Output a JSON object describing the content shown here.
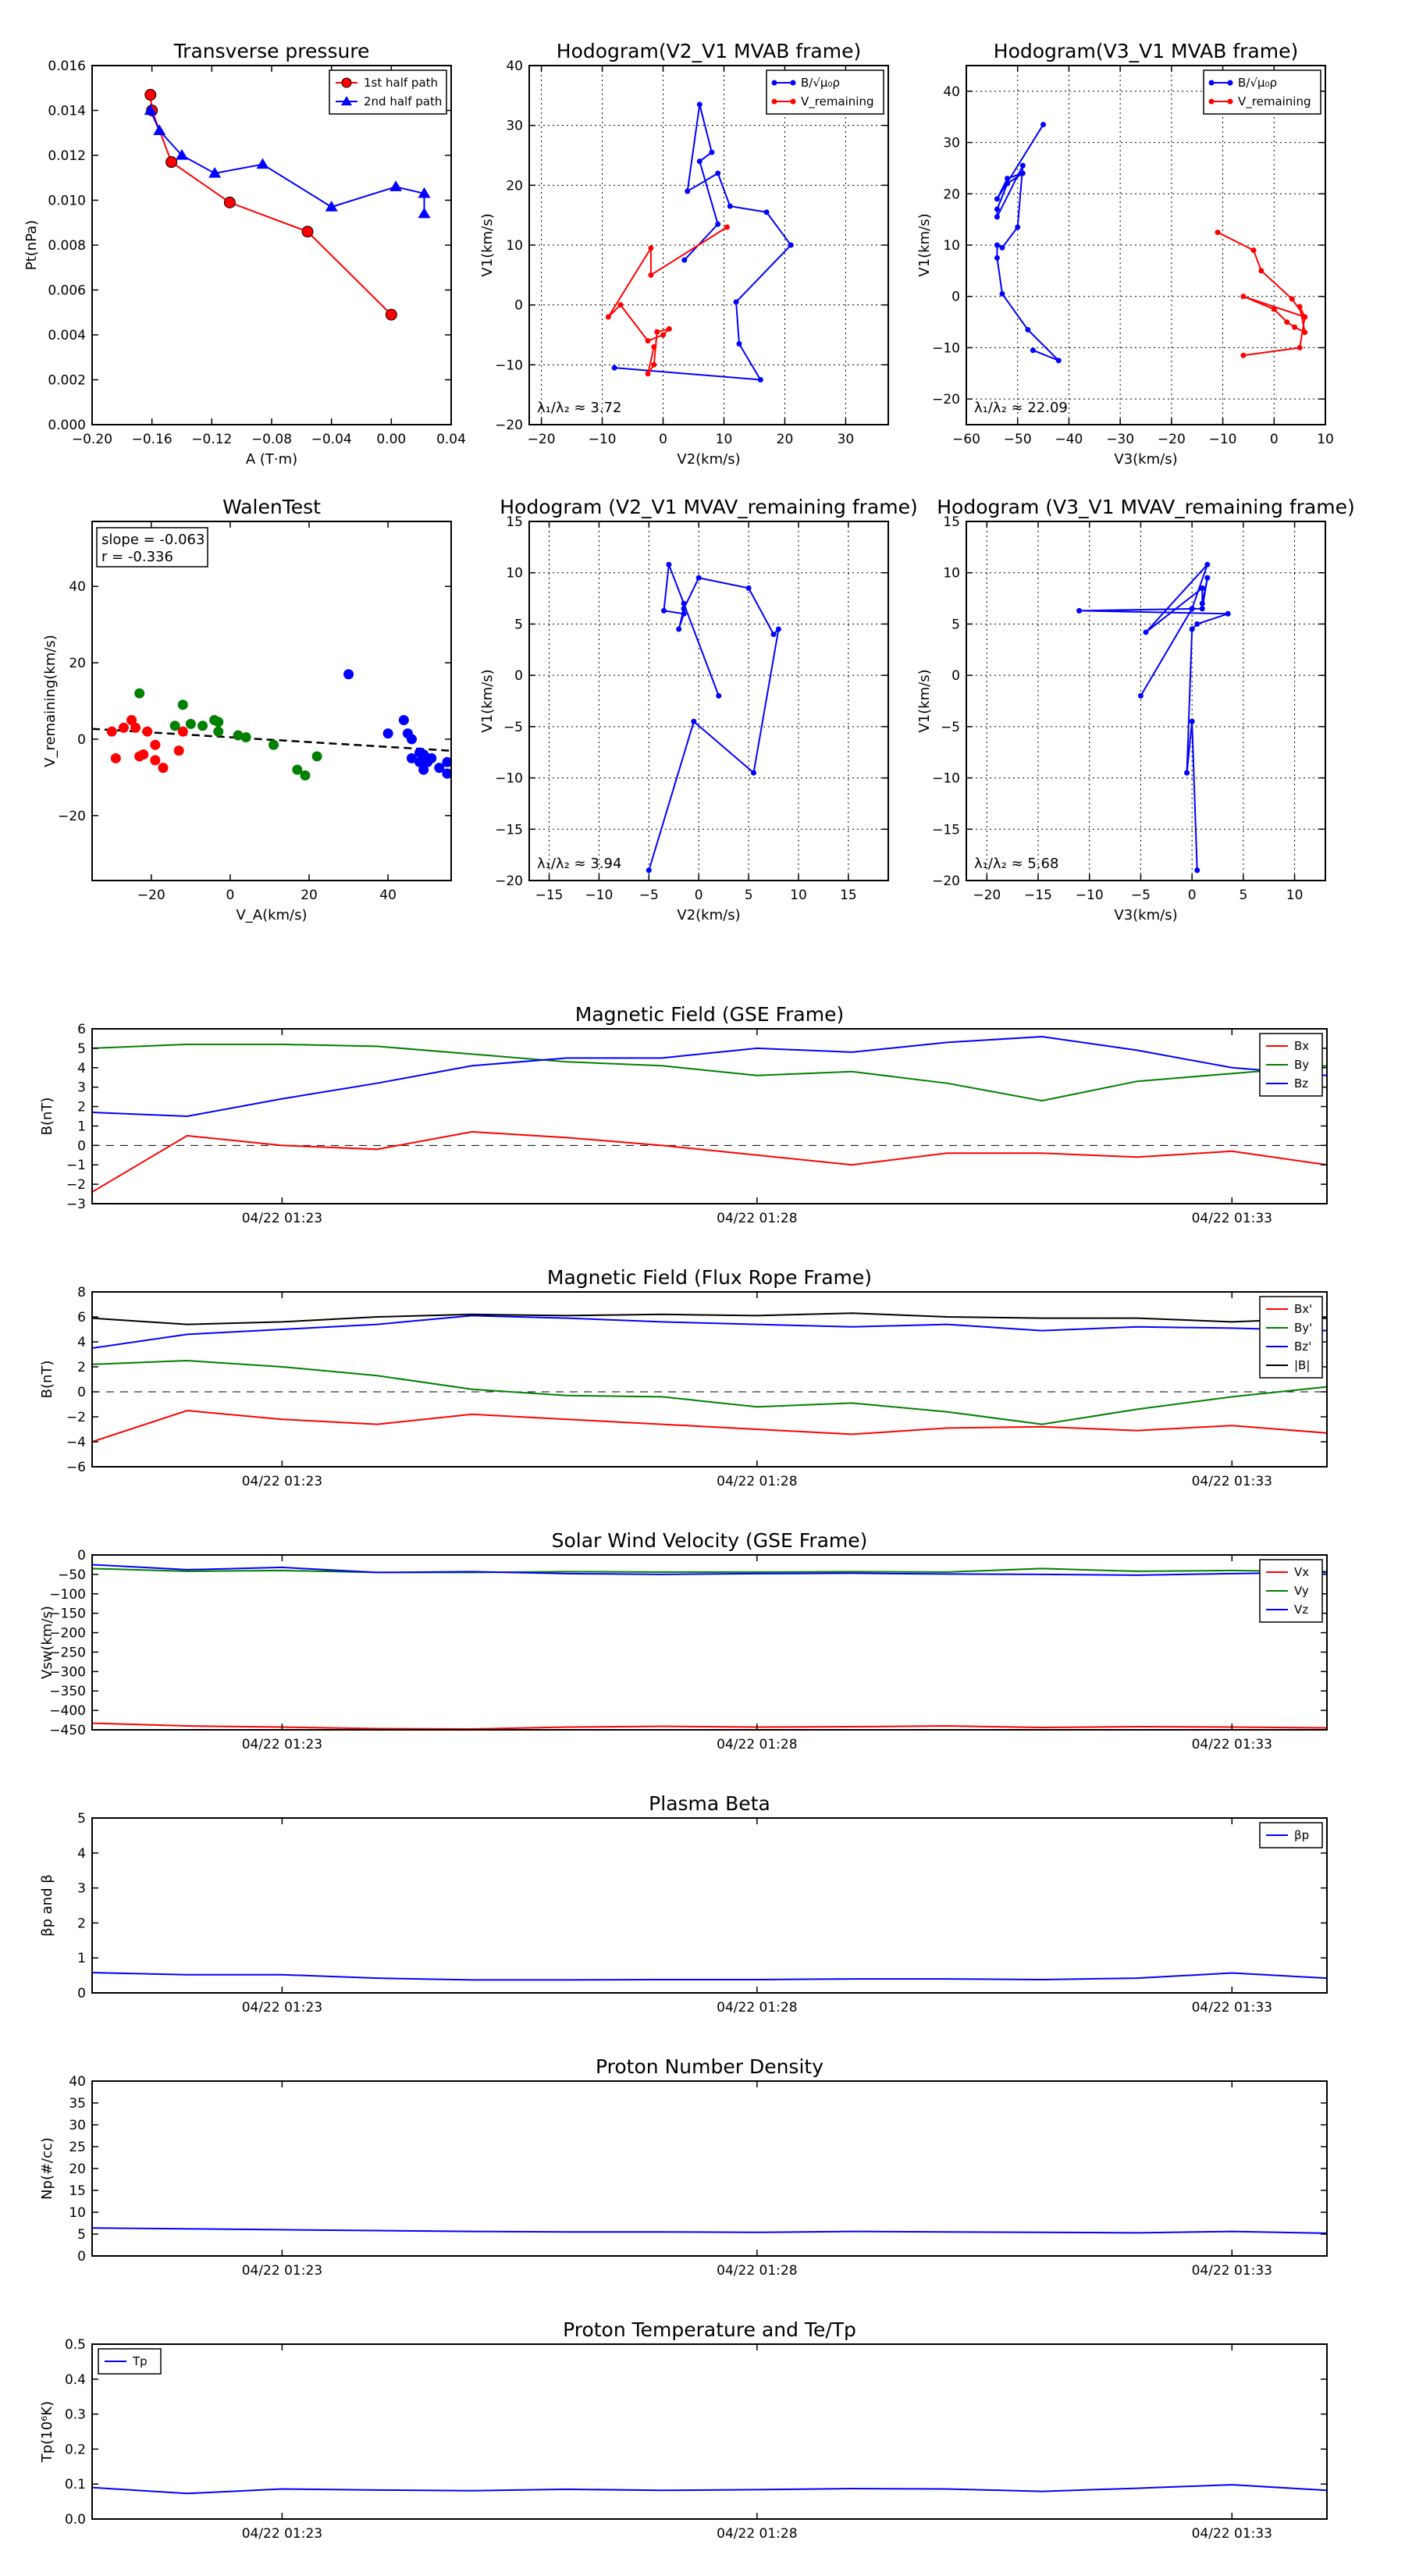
{
  "colors": {
    "red": "#ff0000",
    "green": "#008000",
    "blue": "#0000ff",
    "black": "#000000"
  },
  "chart_data": [
    {
      "id": "tp",
      "type": "line",
      "title": "Transverse pressure",
      "xlabel": "A (T·m)",
      "ylabel": "Pt(nPa)",
      "xlim": [
        -0.2,
        0.04
      ],
      "ylim": [
        0,
        0.016
      ],
      "xticks": [
        "−0.20",
        "−0.16",
        "−0.12",
        "−0.08",
        "−0.04",
        "0.00",
        "0.04"
      ],
      "yticks": [
        "0.000",
        "0.002",
        "0.004",
        "0.006",
        "0.008",
        "0.010",
        "0.012",
        "0.014",
        "0.016"
      ],
      "grid": false,
      "legend": "top-right",
      "series": [
        {
          "name": "1st half path",
          "color": "#ff0000",
          "marker": "circle",
          "x": [
            -0.161,
            -0.16,
            -0.147,
            -0.108,
            -0.056,
            0.0
          ],
          "y": [
            0.0147,
            0.014,
            0.0117,
            0.0099,
            0.0086,
            0.0049
          ]
        },
        {
          "name": "2nd half path",
          "color": "#0000ff",
          "marker": "triangle",
          "x": [
            -0.161,
            -0.155,
            -0.14,
            -0.118,
            -0.086,
            -0.04,
            0.003,
            0.022,
            0.022
          ],
          "y": [
            0.014,
            0.0131,
            0.012,
            0.0112,
            0.0116,
            0.0097,
            0.0106,
            0.0103,
            0.0094
          ]
        }
      ]
    },
    {
      "id": "h1",
      "type": "line",
      "title": "Hodogram(V2_V1 MVAB frame)",
      "xlabel": "V2(km/s)",
      "ylabel": "V1(km/s)",
      "xlim": [
        -22,
        37
      ],
      "ylim": [
        -20,
        40
      ],
      "xticks": [
        "−20",
        "−10",
        "0",
        "10",
        "20",
        "30"
      ],
      "yticks": [
        "−20",
        "−10",
        "0",
        "10",
        "20",
        "30",
        "40"
      ],
      "grid": true,
      "legend": "top-right",
      "annotation": "λ₁/λ₂ ≈ 3.72",
      "series": [
        {
          "name": "B/√μ₀ρ",
          "color": "#0000ff",
          "marker": "dot",
          "x": [
            -8,
            16,
            12.5,
            12,
            21,
            17,
            11,
            9,
            4,
            6,
            8,
            6,
            9,
            3.5
          ],
          "y": [
            -10.5,
            -12.5,
            -6.5,
            0.5,
            10,
            15.5,
            16.5,
            22,
            19,
            33.5,
            25.5,
            24,
            13.5,
            7.5
          ]
        },
        {
          "name": "V_remaining",
          "color": "#ff0000",
          "marker": "dot",
          "x": [
            10.5,
            -2,
            -2,
            -9,
            -7,
            -2.5,
            0,
            1,
            -1,
            -1.5,
            -2.5,
            -1.5
          ],
          "y": [
            13,
            5,
            9.5,
            -2,
            0,
            -6,
            -5,
            -4,
            -4.5,
            -10,
            -11.5,
            -7
          ]
        }
      ]
    },
    {
      "id": "h2",
      "type": "line",
      "title": "Hodogram(V3_V1 MVAB frame)",
      "xlabel": "V3(km/s)",
      "ylabel": "V1(km/s)",
      "xlim": [
        -60,
        10
      ],
      "ylim": [
        -25,
        45
      ],
      "xticks": [
        "−60",
        "−50",
        "−40",
        "−30",
        "−20",
        "−10",
        "0",
        "10"
      ],
      "yticks": [
        "−20",
        "−10",
        "0",
        "10",
        "20",
        "30",
        "40"
      ],
      "grid": true,
      "legend": "top-right",
      "annotation": "λ₁/λ₂ ≈ 22.09",
      "series": [
        {
          "name": "B/√μ₀ρ",
          "color": "#0000ff",
          "marker": "dot",
          "x": [
            -47,
            -42,
            -48,
            -53,
            -54,
            -54,
            -53,
            -50,
            -49,
            -54,
            -54,
            -52,
            -49,
            -52,
            -54,
            -45
          ],
          "y": [
            -10.5,
            -12.5,
            -6.5,
            0.5,
            7.5,
            10,
            9.5,
            13.5,
            25.5,
            15.5,
            17,
            22,
            24,
            23,
            19,
            33.5
          ]
        },
        {
          "name": "V_remaining",
          "color": "#ff0000",
          "marker": "dot",
          "x": [
            -11,
            -4,
            -2.5,
            3.5,
            6,
            5,
            6,
            4,
            2.5,
            0,
            -6,
            6,
            5,
            -6
          ],
          "y": [
            12.5,
            9,
            5,
            -0.5,
            -4,
            -2,
            -7,
            -6,
            -5,
            -2.5,
            0,
            -4,
            -10,
            -11.5
          ]
        }
      ]
    },
    {
      "id": "walen",
      "type": "scatter",
      "title": "WalenTest",
      "xlabel": "V_A(km/s)",
      "ylabel": "V_remaining(km/s)",
      "xlim": [
        -35,
        56
      ],
      "ylim": [
        -37,
        57
      ],
      "xticks": [
        "−20",
        "0",
        "20",
        "40"
      ],
      "yticks": [
        "−20",
        "0",
        "20",
        "40"
      ],
      "grid": false,
      "annotation": [
        "slope = -0.063",
        "r = -0.336"
      ],
      "fit": {
        "slope": -0.063,
        "intercept": 0.5
      },
      "series": [
        {
          "color": "#ff0000",
          "x": [
            -30,
            -29,
            -27,
            -25,
            -24,
            -23,
            -22,
            -21,
            -19,
            -19,
            -17,
            -13,
            -12
          ],
          "y": [
            2,
            -5,
            3,
            5,
            3,
            -4.5,
            -4,
            2,
            -1.5,
            -5.5,
            -7.5,
            -3,
            2
          ]
        },
        {
          "color": "#008000",
          "x": [
            -23,
            -14,
            -12,
            -10,
            -7,
            -4,
            -3,
            -3,
            2,
            4,
            11,
            17,
            19,
            22
          ],
          "y": [
            12,
            3.5,
            9,
            4,
            3.5,
            5,
            2,
            4.5,
            1,
            0.5,
            -1.5,
            -8,
            -9.5,
            -4.5
          ]
        },
        {
          "color": "#0000ff",
          "x": [
            30,
            40,
            44,
            45,
            46,
            46,
            48,
            48,
            49,
            49,
            50,
            50,
            51,
            53,
            55,
            55
          ],
          "y": [
            17,
            1.5,
            5,
            1.5,
            -5,
            0,
            -3.5,
            -6,
            -8,
            -4,
            -5,
            -6,
            -5,
            -7.5,
            -9,
            -6
          ]
        }
      ]
    },
    {
      "id": "h3",
      "type": "line",
      "title": "Hodogram (V2_V1 MVAV_remaining frame)",
      "xlabel": "V2(km/s)",
      "ylabel": "V1(km/s)",
      "xlim": [
        -17,
        19
      ],
      "ylim": [
        -20,
        15
      ],
      "xticks": [
        "−15",
        "−10",
        "−5",
        "0",
        "5",
        "10",
        "15"
      ],
      "yticks": [
        "−20",
        "−15",
        "−10",
        "−5",
        "0",
        "5",
        "10",
        "15"
      ],
      "grid": true,
      "annotation": "λ₁/λ₂ ≈ 3.94",
      "series": [
        {
          "color": "#0000ff",
          "marker": "dot",
          "x": [
            -5,
            -0.5,
            5.5,
            8,
            7.5,
            5,
            0,
            -1.5,
            -2,
            -1.5,
            -3.5,
            -3,
            -1.5,
            2
          ],
          "y": [
            -19,
            -4.5,
            -9.5,
            4.5,
            4,
            8.5,
            9.5,
            6.5,
            4.5,
            6,
            6.3,
            10.8,
            7,
            -2
          ]
        }
      ]
    },
    {
      "id": "h4",
      "type": "line",
      "title": "Hodogram (V3_V1 MVAV_remaining frame)",
      "xlabel": "V3(km/s)",
      "ylabel": "V1(km/s)",
      "xlim": [
        -22,
        13
      ],
      "ylim": [
        -20,
        15
      ],
      "xticks": [
        "−20",
        "−15",
        "−10",
        "−5",
        "0",
        "5",
        "10"
      ],
      "yticks": [
        "−20",
        "−15",
        "−10",
        "−5",
        "0",
        "5",
        "10",
        "15"
      ],
      "grid": true,
      "annotation": "λ₁/λ₂ ≈ 5.68",
      "series": [
        {
          "color": "#0000ff",
          "marker": "dot",
          "x": [
            0.5,
            0,
            -0.5,
            0,
            0.5,
            3.5,
            -11,
            1,
            1.5,
            1,
            1,
            -4.5,
            1.5,
            0,
            -5
          ],
          "y": [
            -19,
            -4.5,
            -9.5,
            4.5,
            5,
            6,
            6.3,
            6.5,
            9.5,
            7,
            8.5,
            4.2,
            10.8,
            6.5,
            -2
          ]
        }
      ]
    },
    {
      "id": "mfgse",
      "type": "line",
      "title": "Magnetic Field (GSE Frame)",
      "xlabel": "",
      "ylabel": "B(nT)",
      "xlim": [
        0,
        13
      ],
      "ylim": [
        -3,
        6
      ],
      "xticks": [
        "04/22 01:23",
        "04/22 01:28",
        "04/22 01:33"
      ],
      "xtick_pos": [
        2,
        7,
        12
      ],
      "yticks": [
        "−3",
        "−2",
        "−1",
        "0",
        "1",
        "2",
        "3",
        "4",
        "5",
        "6"
      ],
      "grid": false,
      "zero_line": true,
      "legend": "top-right",
      "series": [
        {
          "name": "Bx",
          "color": "#ff0000",
          "y": [
            -2.4,
            0.5,
            0.0,
            -0.2,
            0.7,
            0.4,
            0.0,
            -0.5,
            -1.0,
            -0.4,
            -0.4,
            -0.6,
            -0.3,
            -1.0
          ]
        },
        {
          "name": "By",
          "color": "#008000",
          "y": [
            5.0,
            5.2,
            5.2,
            5.1,
            4.7,
            4.3,
            4.1,
            3.6,
            3.8,
            3.2,
            2.3,
            3.3,
            3.7,
            4.1
          ]
        },
        {
          "name": "Bz",
          "color": "#0000ff",
          "y": [
            1.7,
            1.5,
            2.4,
            3.2,
            4.1,
            4.5,
            4.5,
            5.0,
            4.8,
            5.3,
            5.6,
            4.9,
            4.0,
            3.6
          ]
        }
      ]
    },
    {
      "id": "mffr",
      "type": "line",
      "title": "Magnetic Field (Flux Rope Frame)",
      "xlabel": "",
      "ylabel": "B(nT)",
      "xlim": [
        0,
        13
      ],
      "ylim": [
        -6,
        8
      ],
      "xticks": [
        "04/22 01:23",
        "04/22 01:28",
        "04/22 01:33"
      ],
      "xtick_pos": [
        2,
        7,
        12
      ],
      "yticks": [
        "−6",
        "−4",
        "−2",
        "0",
        "2",
        "4",
        "6",
        "8"
      ],
      "grid": false,
      "zero_line": true,
      "legend": "top-right",
      "series": [
        {
          "name": "Bx'",
          "color": "#ff0000",
          "y": [
            -4.0,
            -1.5,
            -2.2,
            -2.6,
            -1.8,
            -2.2,
            -2.6,
            -3.0,
            -3.4,
            -2.9,
            -2.8,
            -3.1,
            -2.7,
            -3.3
          ]
        },
        {
          "name": "By'",
          "color": "#008000",
          "y": [
            2.2,
            2.5,
            2.0,
            1.3,
            0.2,
            -0.3,
            -0.4,
            -1.2,
            -0.9,
            -1.6,
            -2.6,
            -1.4,
            -0.4,
            0.4
          ]
        },
        {
          "name": "Bz'",
          "color": "#0000ff",
          "y": [
            3.5,
            4.6,
            5.0,
            5.4,
            6.1,
            5.9,
            5.6,
            5.4,
            5.2,
            5.4,
            4.9,
            5.2,
            5.1,
            4.9
          ]
        },
        {
          "name": "|B|",
          "color": "#000000",
          "y": [
            5.9,
            5.4,
            5.6,
            6.0,
            6.2,
            6.1,
            6.2,
            6.1,
            6.3,
            6.0,
            5.9,
            5.9,
            5.6,
            5.9
          ]
        }
      ]
    },
    {
      "id": "vsw",
      "type": "line",
      "title": "Solar Wind Velocity (GSE Frame)",
      "xlabel": "",
      "ylabel": "Vsw(km/s)",
      "xlim": [
        0,
        13
      ],
      "ylim": [
        -450,
        0
      ],
      "xticks": [
        "04/22 01:23",
        "04/22 01:28",
        "04/22 01:33"
      ],
      "xtick_pos": [
        2,
        7,
        12
      ],
      "yticks": [
        "−450",
        "−400",
        "−350",
        "−300",
        "−250",
        "−200",
        "−150",
        "−100",
        "−50",
        "0"
      ],
      "grid": false,
      "legend": "top-right",
      "series": [
        {
          "name": "Vx",
          "color": "#ff0000",
          "y": [
            -433,
            -440,
            -443,
            -447,
            -448,
            -443,
            -441,
            -443,
            -442,
            -440,
            -444,
            -442,
            -443,
            -445
          ]
        },
        {
          "name": "Vy",
          "color": "#008000",
          "y": [
            -35,
            -42,
            -40,
            -45,
            -45,
            -43,
            -44,
            -44,
            -43,
            -44,
            -35,
            -42,
            -40,
            -43
          ]
        },
        {
          "name": "Vz",
          "color": "#0000ff",
          "y": [
            -25,
            -38,
            -32,
            -45,
            -43,
            -48,
            -50,
            -48,
            -47,
            -49,
            -50,
            -52,
            -48,
            -45
          ]
        }
      ]
    },
    {
      "id": "beta",
      "type": "line",
      "title": "Plasma Beta",
      "xlabel": "",
      "ylabel": "βp and β",
      "xlim": [
        0,
        13
      ],
      "ylim": [
        0,
        5
      ],
      "xticks": [
        "04/22 01:23",
        "04/22 01:28",
        "04/22 01:33"
      ],
      "xtick_pos": [
        2,
        7,
        12
      ],
      "yticks": [
        "0",
        "1",
        "2",
        "3",
        "4",
        "5"
      ],
      "grid": false,
      "legend": "top-right",
      "series": [
        {
          "name": "βp",
          "color": "#0000ff",
          "y": [
            0.58,
            0.52,
            0.52,
            0.42,
            0.37,
            0.37,
            0.38,
            0.38,
            0.4,
            0.4,
            0.38,
            0.42,
            0.57,
            0.42
          ]
        }
      ]
    },
    {
      "id": "np",
      "type": "line",
      "title": "Proton Number Density",
      "xlabel": "",
      "ylabel": "Np(#/cc)",
      "xlim": [
        0,
        13
      ],
      "ylim": [
        0,
        40
      ],
      "xticks": [
        "04/22 01:23",
        "04/22 01:28",
        "04/22 01:33"
      ],
      "xtick_pos": [
        2,
        7,
        12
      ],
      "yticks": [
        "0",
        "5",
        "10",
        "15",
        "20",
        "25",
        "30",
        "35",
        "40"
      ],
      "grid": false,
      "series": [
        {
          "name": "",
          "color": "#0000ff",
          "y": [
            6.4,
            6.2,
            6.0,
            5.8,
            5.6,
            5.5,
            5.5,
            5.4,
            5.6,
            5.5,
            5.4,
            5.3,
            5.6,
            5.2
          ]
        }
      ]
    },
    {
      "id": "tp2",
      "type": "line",
      "title": "Proton Temperature and Te/Tp",
      "xlabel": "",
      "ylabel": "Tp(10⁶K)",
      "xlim": [
        0,
        13
      ],
      "ylim": [
        0,
        0.5
      ],
      "xticks": [
        "04/22 01:23",
        "04/22 01:28",
        "04/22 01:33"
      ],
      "xtick_pos": [
        2,
        7,
        12
      ],
      "yticks": [
        "0.0",
        "0.1",
        "0.2",
        "0.3",
        "0.4",
        "0.5"
      ],
      "grid": false,
      "legend": "top-left",
      "series": [
        {
          "name": "Tp",
          "color": "#0000ff",
          "y": [
            0.09,
            0.073,
            0.086,
            0.083,
            0.081,
            0.085,
            0.082,
            0.084,
            0.087,
            0.086,
            0.079,
            0.088,
            0.098,
            0.082
          ]
        }
      ]
    }
  ]
}
